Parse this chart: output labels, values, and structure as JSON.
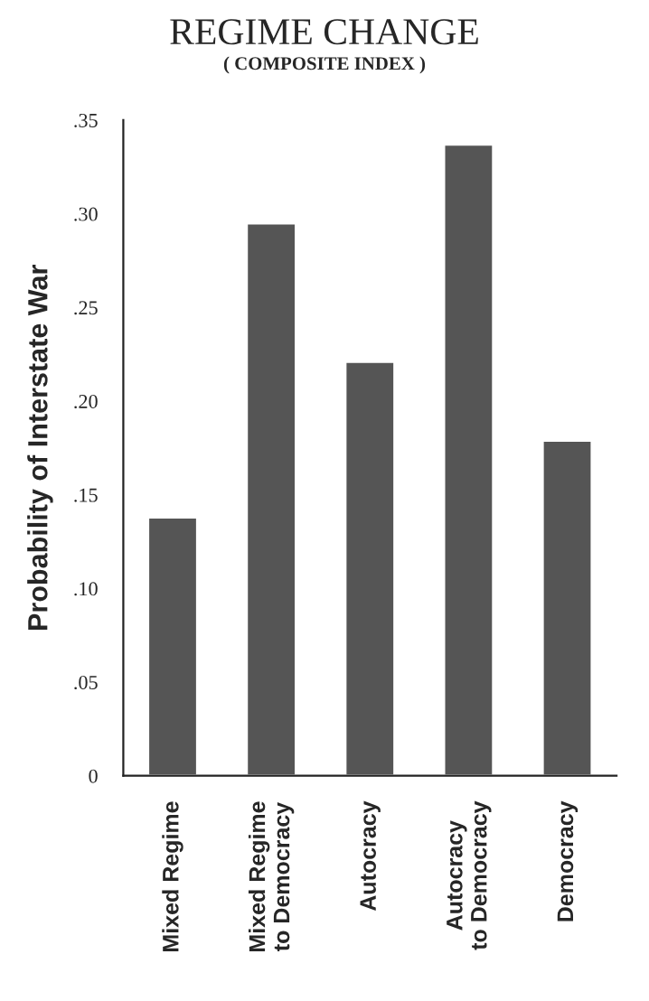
{
  "chart_data": {
    "type": "bar",
    "title": "REGIME CHANGE",
    "subtitle": "( COMPOSITE INDEX )",
    "ylabel": "Probability of Interstate War",
    "categories": [
      "Mixed Regime",
      "Mixed Regime\nto Democracy",
      "Autocracy",
      "Autocracy\nto Democracy",
      "Democracy"
    ],
    "values": [
      0.138,
      0.295,
      0.221,
      0.337,
      0.179
    ],
    "color": "#555555",
    "ylim": [
      0,
      0.35
    ],
    "yticks": [
      {
        "value": 0,
        "label": "0"
      },
      {
        "value": 0.05,
        "label": ".05"
      },
      {
        "value": 0.1,
        "label": ".10"
      },
      {
        "value": 0.15,
        "label": ".15"
      },
      {
        "value": 0.2,
        "label": ".20"
      },
      {
        "value": 0.25,
        "label": ".25"
      },
      {
        "value": 0.3,
        "label": ".30"
      },
      {
        "value": 0.35,
        "label": ".35"
      }
    ],
    "grid": false,
    "legend": false
  }
}
